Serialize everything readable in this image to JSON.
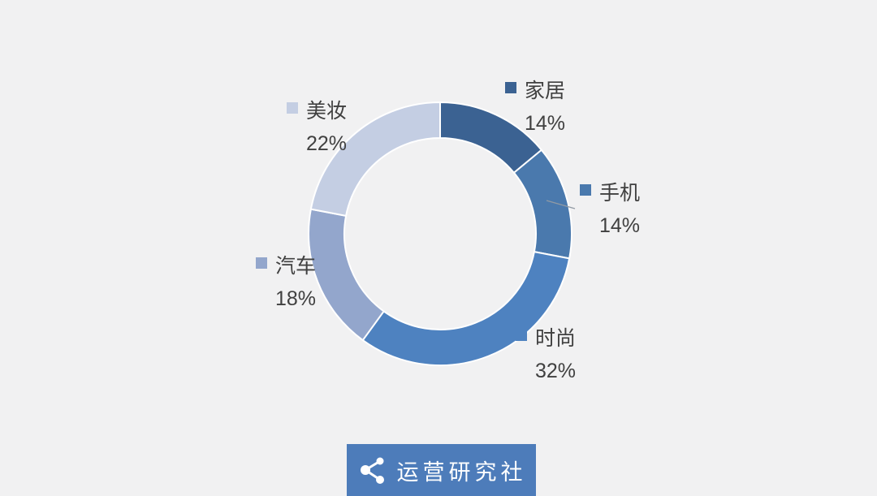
{
  "background": "#f1f1f2",
  "text_color": "#404040",
  "chart_data": {
    "type": "pie",
    "subtype": "donut",
    "title": "",
    "categories": [
      "家居",
      "手机",
      "时尚",
      "汽车",
      "美妆"
    ],
    "values": [
      14,
      14,
      32,
      18,
      22
    ],
    "unit": "%",
    "colors": [
      "#3b6292",
      "#4a79ad",
      "#4e82c0",
      "#93a6cc",
      "#c4cee3"
    ],
    "start_angle_deg": 0,
    "direction": "clockwise",
    "separator_color": "#ffffff",
    "leader_line_color": "#919aa4",
    "labels": [
      {
        "name": "家居",
        "pct": "14%"
      },
      {
        "name": "手机",
        "pct": "14%"
      },
      {
        "name": "时尚",
        "pct": "32%"
      },
      {
        "name": "汽车",
        "pct": "18%"
      },
      {
        "name": "美妆",
        "pct": "22%"
      }
    ]
  },
  "logo": {
    "text": "运营研究社",
    "bg_color": "#4d7cba",
    "icon": "share-icon"
  }
}
